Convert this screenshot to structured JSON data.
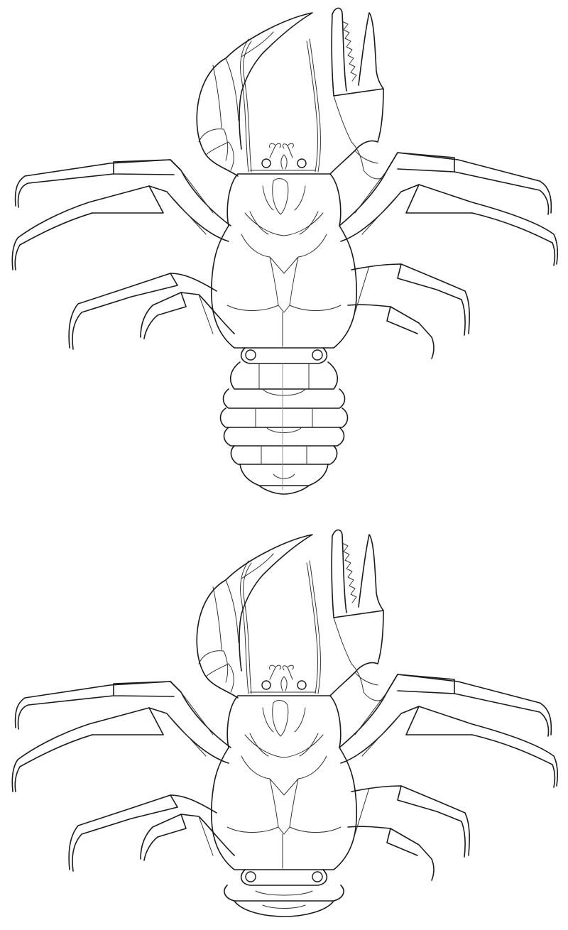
{
  "figure": {
    "panels": [
      {
        "id": "top",
        "subject": "crab-like-crustacean",
        "view": "ventral",
        "abdomen": "extended"
      },
      {
        "id": "bottom",
        "subject": "crab-like-crustacean",
        "view": "ventral",
        "abdomen": "folded"
      }
    ],
    "colors": {
      "background": "#ffffff",
      "ink": "#1a1a1a",
      "faint": "#888888"
    }
  }
}
